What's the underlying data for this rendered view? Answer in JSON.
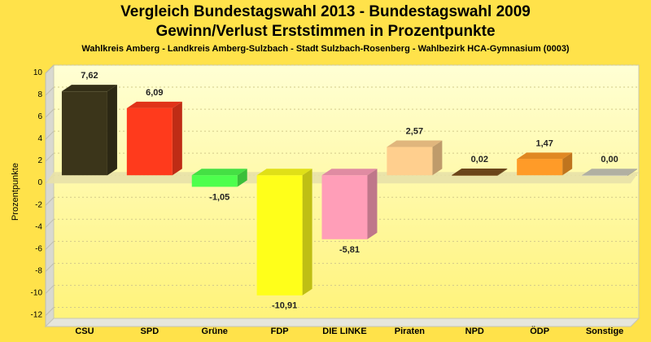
{
  "title": "Vergleich Bundestagswahl 2013 - Bundestagswahl 2009",
  "subtitle": "Gewinn/Verlust Erststimmen in Prozentpunkte",
  "subtitle2": "Wahlkreis Amberg - Landkreis Amberg-Sulzbach - Stadt Sulzbach-Rosenberg - Wahlbezirk HCA-Gymnasium (0003)",
  "chart_data": {
    "type": "bar",
    "title": "Vergleich Bundestagswahl 2013 - Bundestagswahl 2009",
    "subtitle": "Gewinn/Verlust Erststimmen in Prozentpunkte",
    "xlabel": "",
    "ylabel": "Prozentpunkte",
    "ylim": [
      -13,
      10
    ],
    "yticks": [
      10,
      8,
      6,
      4,
      2,
      0,
      -2,
      -4,
      -6,
      -8,
      -10,
      -12
    ],
    "grid": true,
    "categories": [
      "CSU",
      "SPD",
      "Grüne",
      "FDP",
      "DIE LINKE",
      "Piraten",
      "NPD",
      "ÖDP",
      "Sonstige"
    ],
    "values": [
      7.62,
      6.09,
      -1.05,
      -10.91,
      -5.81,
      2.57,
      0.02,
      1.47,
      0.0
    ],
    "value_labels": [
      "7,62",
      "6,09",
      "-1,05",
      "-10,91",
      "-5,81",
      "2,57",
      "0,02",
      "1,47",
      "0,00"
    ],
    "colors": [
      "#3b351a",
      "#ff3a1c",
      "#4dff4d",
      "#ffff1a",
      "#ff9eb8",
      "#ffcf8e",
      "#7a4e1d",
      "#ff9b28",
      "#c9c8b8"
    ]
  }
}
